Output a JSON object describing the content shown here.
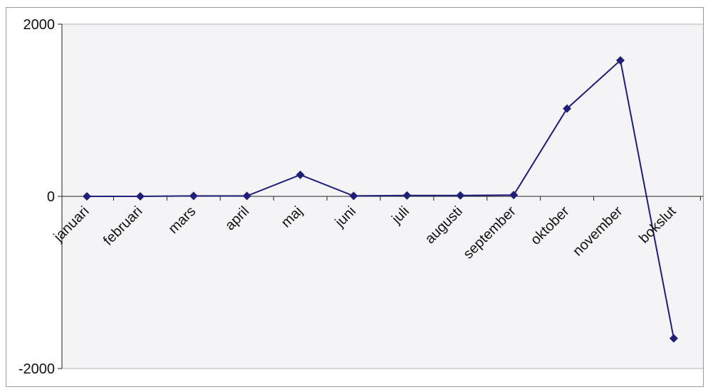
{
  "chart_data": {
    "type": "line",
    "title": "",
    "xlabel": "",
    "ylabel": "",
    "categories": [
      "januari",
      "februari",
      "mars",
      "april",
      "maj",
      "juni",
      "juli",
      "augusti",
      "september",
      "oktober",
      "november",
      "bokslut"
    ],
    "series": [
      {
        "values": [
          0,
          0,
          5,
          5,
          250,
          5,
          10,
          10,
          15,
          1020,
          1580,
          -1650
        ],
        "color": "#1f1f7a"
      }
    ],
    "ylim": [
      -2000,
      2000
    ],
    "yticks": [
      "2000",
      "0",
      "-2000"
    ],
    "grid": false,
    "legend": "none",
    "plot_background": "#f4f4f6",
    "marker": "diamond"
  }
}
